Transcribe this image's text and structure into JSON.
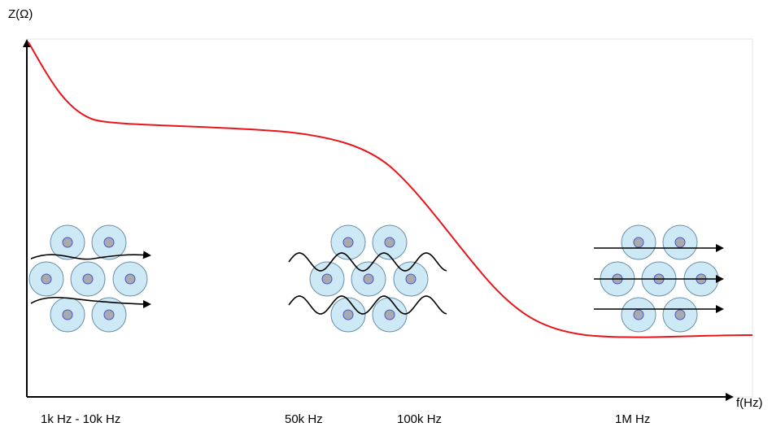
{
  "axes": {
    "y_label": "Z(Ω)",
    "x_label": "f(Hz)"
  },
  "frequency_labels": [
    "1k Hz - 10k Hz",
    "50k Hz",
    "100k Hz",
    "1M Hz"
  ]
}
